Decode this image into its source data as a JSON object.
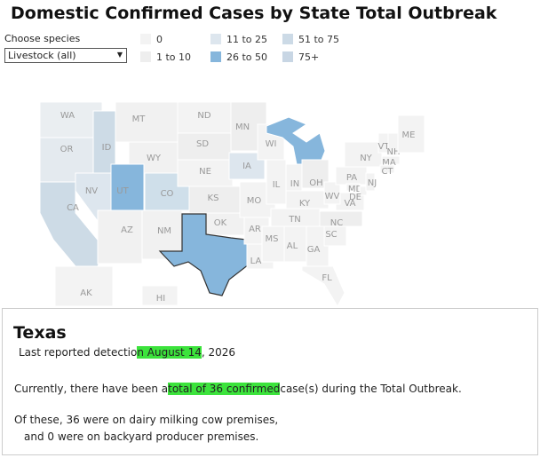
{
  "header": {
    "title": "Domestic Confirmed Cases by State Total Outbreak"
  },
  "filter": {
    "label": "Choose species",
    "value": "Livestock (all)"
  },
  "legend": [
    {
      "label": "0",
      "color": "#f3f3f3"
    },
    {
      "label": "1 to 10",
      "color": "#eeeeee"
    },
    {
      "label": "11 to 25",
      "color": "#dde6ee"
    },
    {
      "label": "26 to 50",
      "color": "#86b6dc"
    },
    {
      "label": "51 to 75",
      "color": "#ccdae6"
    },
    {
      "label": "75+",
      "color": "#c8d6e4"
    }
  ],
  "map": {
    "states": [
      {
        "label": "WA",
        "color": "#eaeef1"
      },
      {
        "label": "OR",
        "color": "#e4eaef"
      },
      {
        "label": "CA",
        "color": "#cddbe6"
      },
      {
        "label": "NV",
        "color": "#dde6ee"
      },
      {
        "label": "ID",
        "color": "#cddbe6"
      },
      {
        "label": "MT",
        "color": "#f1f1f1"
      },
      {
        "label": "WY",
        "color": "#f1f1f1"
      },
      {
        "label": "UT",
        "color": "#86b6dc"
      },
      {
        "label": "CO",
        "color": "#cfdfea"
      },
      {
        "label": "AZ",
        "color": "#f1f1f1"
      },
      {
        "label": "NM",
        "color": "#f1f1f1"
      },
      {
        "label": "ND",
        "color": "#f3f3f3"
      },
      {
        "label": "SD",
        "color": "#eeeeee"
      },
      {
        "label": "NE",
        "color": "#f3f3f3"
      },
      {
        "label": "KS",
        "color": "#eeeeee"
      },
      {
        "label": "OK",
        "color": "#f1f1f1"
      },
      {
        "label": null,
        "color": "#86b6dc"
      },
      {
        "label": "MN",
        "color": "#eeeeee"
      },
      {
        "label": "IA",
        "color": "#dde6ee"
      },
      {
        "label": "MO",
        "color": "#f3f3f3"
      },
      {
        "label": "AR",
        "color": "#f3f3f3"
      },
      {
        "label": "LA",
        "color": "#f3f3f3"
      },
      {
        "label": "WI",
        "color": "#f3f3f3"
      },
      {
        "label": null,
        "color": "#86b6dc"
      },
      {
        "label": "IL",
        "color": "#f3f3f3"
      },
      {
        "label": "IN",
        "color": "#f3f3f3"
      },
      {
        "label": "OH",
        "color": "#eeeeee"
      },
      {
        "label": "KY",
        "color": "#f3f3f3"
      },
      {
        "label": "TN",
        "color": "#f3f3f3"
      },
      {
        "label": "MS",
        "color": "#f3f3f3"
      },
      {
        "label": "AL",
        "color": "#f3f3f3"
      },
      {
        "label": "GA",
        "color": "#f3f3f3"
      },
      {
        "label": "FL",
        "color": "#f3f3f3"
      },
      {
        "label": "SC",
        "color": "#f3f3f3"
      },
      {
        "label": "NC",
        "color": "#eeeeee"
      },
      {
        "label": "VA",
        "color": "#f3f3f3"
      },
      {
        "label": "WV",
        "color": "#f3f3f3"
      },
      {
        "label": "PA",
        "color": "#f3f3f3"
      },
      {
        "label": "MD",
        "color": "#f3f3f3"
      },
      {
        "label": "DE",
        "color": "#f3f3f3"
      },
      {
        "label": "NJ",
        "color": "#f3f3f3"
      },
      {
        "label": "NY",
        "color": "#f3f3f3"
      },
      {
        "label": "VT",
        "color": "#f3f3f3"
      },
      {
        "label": "NH",
        "color": "#f3f3f3"
      },
      {
        "label": "MA",
        "color": "#f3f3f3"
      },
      {
        "label": "CT",
        "color": "#f3f3f3"
      },
      {
        "label": "ME",
        "color": "#f3f3f3"
      },
      {
        "label": "AK",
        "color": "#f3f3f3"
      },
      {
        "label": "HI",
        "color": "#f3f3f3"
      }
    ]
  },
  "tooltip": {
    "title": "Texas",
    "detection": [
      "Last reported detectio",
      "n August 14",
      ", 2026"
    ],
    "summary": [
      "Currently, there have been a",
      "total of 36 confirmed",
      "case(s) during the Total Outbreak."
    ],
    "dairy": "Of these, 36 were on dairy milking cow premises,",
    "backyard": "and 0 were on backyard producer premises."
  }
}
